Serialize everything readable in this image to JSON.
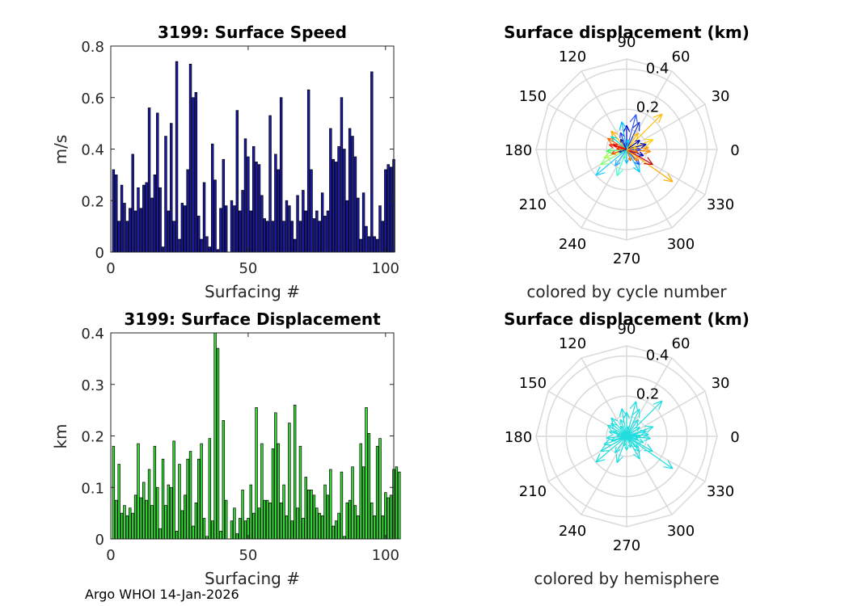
{
  "footer": "Argo WHOI 14-Jan-2026",
  "chart_data": [
    {
      "type": "bar",
      "title": "3199: Surface Speed",
      "xlabel": "Surfacing #",
      "ylabel": "m/s",
      "xlim": [
        0,
        103
      ],
      "ylim": [
        0,
        0.8
      ],
      "xticks": [
        "0",
        "50",
        "100"
      ],
      "yticks": [
        "0",
        "0.2",
        "0.4",
        "0.6",
        "0.8"
      ],
      "bar_color": "#1a1aa6",
      "values": [
        0.32,
        0.3,
        0.12,
        0.26,
        0.19,
        0.12,
        0.17,
        0.38,
        0.16,
        0.25,
        0.17,
        0.26,
        0.27,
        0.56,
        0.21,
        0.3,
        0.54,
        0.25,
        0.02,
        0.45,
        0.16,
        0.5,
        0.12,
        0.74,
        0.05,
        0.19,
        0.18,
        0.32,
        0.73,
        0.6,
        0.62,
        0.14,
        0.05,
        0.27,
        0.06,
        0.02,
        0.42,
        0.28,
        0.01,
        0.17,
        0.36,
        0.18,
        0.2,
        0.18,
        0.55,
        0.16,
        0.24,
        0.44,
        0.37,
        0.16,
        0.41,
        0.35,
        0.34,
        0.22,
        0.13,
        0.12,
        0.53,
        0.12,
        0.38,
        0.32,
        0.6,
        0.12,
        0.2,
        0.18,
        0.12,
        0.05,
        0.22,
        0.12,
        0.24,
        0.16,
        0.63,
        0.32,
        0.13,
        0.16,
        0.12,
        0.23,
        0.14,
        0.16,
        0.48,
        0.36,
        0.35,
        0.41,
        0.6,
        0.4,
        0.2,
        0.48,
        0.45,
        0.37,
        0.21,
        0.05,
        0.23,
        0.1,
        0.06,
        0.7,
        0.06,
        0.05,
        0.18,
        0.12,
        0.32,
        0.34,
        0.33,
        0.36
      ],
      "missing_after_index": 41
    },
    {
      "type": "bar",
      "title": "3199: Surface Displacement",
      "xlabel": "Surfacing #",
      "ylabel": "km",
      "xlim": [
        0,
        103
      ],
      "ylim": [
        0,
        0.4
      ],
      "xticks": [
        "0",
        "50",
        "100"
      ],
      "yticks": [
        "0",
        "0.1",
        "0.2",
        "0.3",
        "0.4"
      ],
      "bar_color": "#33dd33",
      "values": [
        0.18,
        0.075,
        0.145,
        0.05,
        0.065,
        0.045,
        0.06,
        0.05,
        0.085,
        0.185,
        0.08,
        0.11,
        0.075,
        0.135,
        0.065,
        0.18,
        0.1,
        0.02,
        0.155,
        0.065,
        0.105,
        0.1,
        0.19,
        0.015,
        0.145,
        0.055,
        0.085,
        0.155,
        0.17,
        0.025,
        0.07,
        0.155,
        0.185,
        0.04,
        0.005,
        0.195,
        0.035,
        0.4,
        0.37,
        0.015,
        0.23,
        0.075,
        0.035,
        0.06,
        0.01,
        0.04,
        0.095,
        0.035,
        0.04,
        0.105,
        0.05,
        0.255,
        0.06,
        0.185,
        0.075,
        0.075,
        0.07,
        0.175,
        0.245,
        0.185,
        0.07,
        0.105,
        0.045,
        0.225,
        0.035,
        0.26,
        0.06,
        0.18,
        0.04,
        0.12,
        0.095,
        0.095,
        0.085,
        0.06,
        0.05,
        0.045,
        0.105,
        0.085,
        0.135,
        0.025,
        0.035,
        0.05,
        0.13,
        0.005,
        0.07,
        0.075,
        0.14,
        0.065,
        0.045,
        0.185,
        0.14,
        0.255,
        0.205,
        0.07,
        0.045,
        0.18,
        0.195,
        0.045,
        0.09,
        0.08,
        0.085,
        0.135,
        0.14,
        0.13
      ],
      "missing_after_index": 41
    },
    {
      "type": "polar-compass",
      "title": "Surface displacement (km)",
      "caption": "colored by cycle number",
      "rmax": 0.45,
      "r_ticks": [
        "0.2",
        "0.4"
      ],
      "angle_labels": [
        "0",
        "30",
        "60",
        "90",
        "120",
        "150",
        "180",
        "210",
        "240",
        "270",
        "300",
        "330"
      ],
      "colormap": "jet",
      "arrows": [
        {
          "angle": 325,
          "r": 0.28,
          "color": "#ffaa00"
        },
        {
          "angle": 45,
          "r": 0.25,
          "color": "#ffbb00"
        },
        {
          "angle": 220,
          "r": 0.2,
          "color": "#22ccff"
        },
        {
          "angle": 65,
          "r": 0.15,
          "color": "#1133cc"
        },
        {
          "angle": 130,
          "r": 0.12,
          "color": "#ffaa00"
        },
        {
          "angle": 140,
          "r": 0.1,
          "color": "#00dddd"
        },
        {
          "angle": 150,
          "r": 0.11,
          "color": "#ff6600"
        },
        {
          "angle": 165,
          "r": 0.09,
          "color": "#ff2200"
        },
        {
          "angle": 20,
          "r": 0.14,
          "color": "#ffcc00"
        },
        {
          "angle": 5,
          "r": 0.11,
          "color": "#ffaa00"
        },
        {
          "angle": 355,
          "r": 0.12,
          "color": "#ff8800"
        },
        {
          "angle": 340,
          "r": 0.09,
          "color": "#0000aa"
        },
        {
          "angle": 310,
          "r": 0.1,
          "color": "#1155ff"
        },
        {
          "angle": 300,
          "r": 0.13,
          "color": "#00ccff"
        },
        {
          "angle": 250,
          "r": 0.14,
          "color": "#44ffcc"
        },
        {
          "angle": 200,
          "r": 0.12,
          "color": "#aaff44"
        },
        {
          "angle": 195,
          "r": 0.08,
          "color": "#ff4400"
        },
        {
          "angle": 185,
          "r": 0.1,
          "color": "#33ff66"
        },
        {
          "angle": 90,
          "r": 0.12,
          "color": "#0000cc"
        },
        {
          "angle": 100,
          "r": 0.14,
          "color": "#00bbff"
        },
        {
          "angle": 110,
          "r": 0.09,
          "color": "#2244dd"
        },
        {
          "angle": 75,
          "r": 0.18,
          "color": "#3355ff"
        },
        {
          "angle": 35,
          "r": 0.08,
          "color": "#0000aa"
        },
        {
          "angle": 15,
          "r": 0.1,
          "color": "#0011bb"
        },
        {
          "angle": 0,
          "r": 0.07,
          "color": "#3344ff"
        },
        {
          "angle": 330,
          "r": 0.15,
          "color": "#cc0000"
        },
        {
          "angle": 290,
          "r": 0.06,
          "color": "#ff6600"
        },
        {
          "angle": 235,
          "r": 0.1,
          "color": "#22aaff"
        },
        {
          "angle": 210,
          "r": 0.15,
          "color": "#88ff77"
        },
        {
          "angle": 175,
          "r": 0.05,
          "color": "#ff3300"
        },
        {
          "angle": 270,
          "r": 0.07,
          "color": "#00bbff"
        },
        {
          "angle": 55,
          "r": 0.1,
          "color": "#ffbb00"
        },
        {
          "angle": 120,
          "r": 0.06,
          "color": "#0022aa"
        },
        {
          "angle": 345,
          "r": 0.06,
          "color": "#ff5500"
        },
        {
          "angle": 10,
          "r": 0.05,
          "color": "#ffcc00"
        },
        {
          "angle": 80,
          "r": 0.05,
          "color": "#00ddff"
        },
        {
          "angle": 255,
          "r": 0.05,
          "color": "#55ffaa"
        },
        {
          "angle": 315,
          "r": 0.08,
          "color": "#ff8800"
        },
        {
          "angle": 160,
          "r": 0.07,
          "color": "#dd0000"
        },
        {
          "angle": 200,
          "r": 0.04,
          "color": "#0033cc"
        }
      ]
    },
    {
      "type": "polar-compass",
      "title": "Surface displacement (km)",
      "caption": "colored by hemisphere",
      "rmax": 0.45,
      "r_ticks": [
        "0.2",
        "0.4"
      ],
      "angle_labels": [
        "0",
        "30",
        "60",
        "90",
        "120",
        "150",
        "180",
        "210",
        "240",
        "270",
        "300",
        "330"
      ],
      "arrow_color": "#22dddd",
      "arrows": [
        {
          "angle": 325,
          "r": 0.28
        },
        {
          "angle": 45,
          "r": 0.25
        },
        {
          "angle": 220,
          "r": 0.2
        },
        {
          "angle": 65,
          "r": 0.15
        },
        {
          "angle": 130,
          "r": 0.12
        },
        {
          "angle": 140,
          "r": 0.1
        },
        {
          "angle": 150,
          "r": 0.11
        },
        {
          "angle": 165,
          "r": 0.09
        },
        {
          "angle": 20,
          "r": 0.14
        },
        {
          "angle": 5,
          "r": 0.11
        },
        {
          "angle": 355,
          "r": 0.12
        },
        {
          "angle": 340,
          "r": 0.09
        },
        {
          "angle": 310,
          "r": 0.1
        },
        {
          "angle": 300,
          "r": 0.13
        },
        {
          "angle": 250,
          "r": 0.14
        },
        {
          "angle": 200,
          "r": 0.12
        },
        {
          "angle": 195,
          "r": 0.08
        },
        {
          "angle": 185,
          "r": 0.1
        },
        {
          "angle": 90,
          "r": 0.12
        },
        {
          "angle": 100,
          "r": 0.14
        },
        {
          "angle": 110,
          "r": 0.09
        },
        {
          "angle": 75,
          "r": 0.18
        },
        {
          "angle": 35,
          "r": 0.08
        },
        {
          "angle": 15,
          "r": 0.1
        },
        {
          "angle": 0,
          "r": 0.07
        },
        {
          "angle": 330,
          "r": 0.15
        },
        {
          "angle": 290,
          "r": 0.06
        },
        {
          "angle": 235,
          "r": 0.1
        },
        {
          "angle": 210,
          "r": 0.15
        },
        {
          "angle": 175,
          "r": 0.05
        },
        {
          "angle": 270,
          "r": 0.07
        },
        {
          "angle": 55,
          "r": 0.1
        },
        {
          "angle": 120,
          "r": 0.06
        },
        {
          "angle": 345,
          "r": 0.06
        },
        {
          "angle": 10,
          "r": 0.05
        },
        {
          "angle": 80,
          "r": 0.05
        },
        {
          "angle": 255,
          "r": 0.05
        },
        {
          "angle": 315,
          "r": 0.08
        },
        {
          "angle": 160,
          "r": 0.07
        },
        {
          "angle": 200,
          "r": 0.04
        }
      ]
    }
  ]
}
